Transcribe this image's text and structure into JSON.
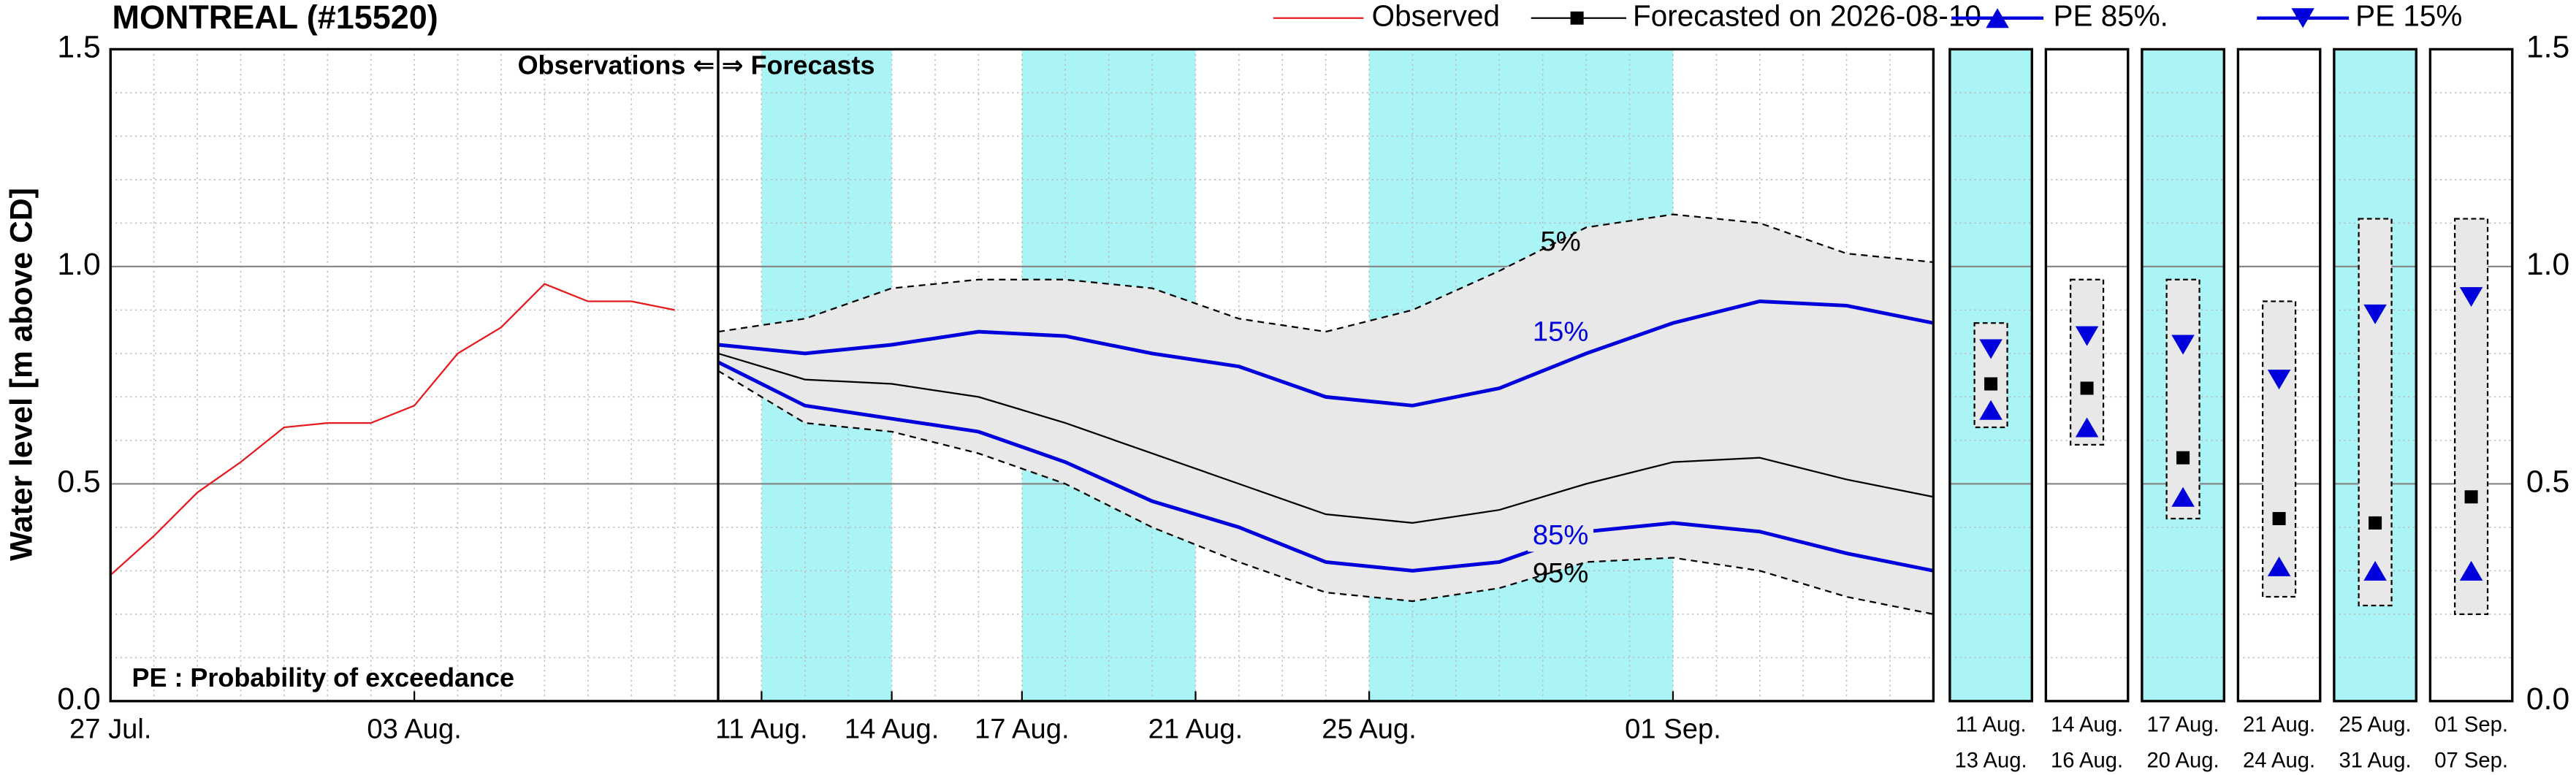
{
  "chart_data": {
    "type": "line",
    "title": "MONTREAL (#15520)",
    "y_label": "Water level [m above CD]",
    "annotations": {
      "observations": "Observations ⇐",
      "forecasts": "⇒ Forecasts",
      "pe_note": "PE : Probability of exceedance"
    },
    "xlim": [
      "2026-07-27",
      "2026-09-07"
    ],
    "ylim": [
      0,
      1.5
    ],
    "yticks": [
      {
        "value": 0,
        "label": "0.0"
      },
      {
        "value": 0.5,
        "label": "0.5"
      },
      {
        "value": 1.0,
        "label": "1.0"
      },
      {
        "value": 1.5,
        "label": "1.5"
      }
    ],
    "xticks": [
      {
        "value": "2026-07-27",
        "label": "27 Jul."
      },
      {
        "value": "2026-08-03",
        "label": "03 Aug."
      },
      {
        "value": "2026-08-11",
        "label": "11 Aug."
      },
      {
        "value": "2026-08-14",
        "label": "14 Aug."
      },
      {
        "value": "2026-08-17",
        "label": "17 Aug."
      },
      {
        "value": "2026-08-21",
        "label": "21 Aug."
      },
      {
        "value": "2026-08-25",
        "label": "25 Aug."
      },
      {
        "value": "2026-09-01",
        "label": "01 Sep."
      }
    ],
    "forecast_start": "2026-08-10",
    "grid": true,
    "observed": {
      "name": "Observed",
      "color": "#e41a1c",
      "x": [
        "2026-07-27",
        "2026-07-28",
        "2026-07-29",
        "2026-07-30",
        "2026-07-31",
        "2026-08-01",
        "2026-08-02",
        "2026-08-03",
        "2026-08-04",
        "2026-08-05",
        "2026-08-06",
        "2026-08-07",
        "2026-08-08",
        "2026-08-09"
      ],
      "values": [
        0.29,
        0.38,
        0.48,
        0.55,
        0.63,
        0.64,
        0.64,
        0.68,
        0.8,
        0.86,
        0.96,
        0.92,
        0.92,
        0.9
      ]
    },
    "forecast_x": [
      "2026-08-10",
      "2026-08-12",
      "2026-08-14",
      "2026-08-16",
      "2026-08-18",
      "2026-08-20",
      "2026-08-22",
      "2026-08-24",
      "2026-08-26",
      "2026-08-28",
      "2026-08-30",
      "2026-09-01",
      "2026-09-03",
      "2026-09-05",
      "2026-09-07"
    ],
    "median": {
      "name": "Forecasted on 2026-08-10",
      "color": "#000000",
      "values": [
        0.8,
        0.74,
        0.73,
        0.7,
        0.64,
        0.57,
        0.5,
        0.43,
        0.41,
        0.44,
        0.5,
        0.55,
        0.56,
        0.51,
        0.47
      ]
    },
    "pe15": {
      "name": "PE 15%",
      "label": "15%",
      "color": "#0000dd",
      "values": [
        0.82,
        0.8,
        0.82,
        0.85,
        0.84,
        0.8,
        0.77,
        0.7,
        0.68,
        0.72,
        0.8,
        0.87,
        0.92,
        0.91,
        0.87
      ]
    },
    "pe85": {
      "name": "PE 85%.",
      "label": "85%",
      "color": "#0000dd",
      "values": [
        0.78,
        0.68,
        0.65,
        0.62,
        0.55,
        0.46,
        0.4,
        0.32,
        0.3,
        0.32,
        0.39,
        0.41,
        0.39,
        0.34,
        0.3
      ]
    },
    "envelope": {
      "upper_label": "5%",
      "lower_label": "95%",
      "fill": "#e8e8e8",
      "band_color": "#aaf4f6",
      "upper": [
        0.85,
        0.88,
        0.95,
        0.97,
        0.97,
        0.95,
        0.88,
        0.85,
        0.9,
        0.99,
        1.09,
        1.12,
        1.1,
        1.03,
        1.01
      ],
      "lower": [
        0.76,
        0.64,
        0.62,
        0.57,
        0.5,
        0.4,
        0.32,
        0.25,
        0.23,
        0.26,
        0.32,
        0.33,
        0.3,
        0.24,
        0.2
      ]
    },
    "periods": [
      {
        "start": "2026-08-11",
        "end": "2026-08-13",
        "label_start": "11 Aug.",
        "label_end": "13 Aug.",
        "shaded": true,
        "high": 0.87,
        "low": 0.63,
        "pe15": 0.81,
        "median": 0.73,
        "pe85": 0.67
      },
      {
        "start": "2026-08-14",
        "end": "2026-08-16",
        "label_start": "14 Aug.",
        "label_end": "16 Aug.",
        "shaded": false,
        "high": 0.97,
        "low": 0.59,
        "pe15": 0.84,
        "median": 0.72,
        "pe85": 0.63
      },
      {
        "start": "2026-08-17",
        "end": "2026-08-20",
        "label_start": "17 Aug.",
        "label_end": "20 Aug.",
        "shaded": true,
        "high": 0.97,
        "low": 0.42,
        "pe15": 0.82,
        "median": 0.56,
        "pe85": 0.47
      },
      {
        "start": "2026-08-21",
        "end": "2026-08-24",
        "label_start": "21 Aug.",
        "label_end": "24 Aug.",
        "shaded": false,
        "high": 0.92,
        "low": 0.24,
        "pe15": 0.74,
        "median": 0.42,
        "pe85": 0.31
      },
      {
        "start": "2026-08-25",
        "end": "2026-08-31",
        "label_start": "25 Aug.",
        "label_end": "31 Aug.",
        "shaded": true,
        "high": 1.11,
        "low": 0.22,
        "pe15": 0.89,
        "median": 0.41,
        "pe85": 0.3
      },
      {
        "start": "2026-09-01",
        "end": "2026-09-07",
        "label_start": "01 Sep.",
        "label_end": "07 Sep.",
        "shaded": false,
        "high": 1.11,
        "low": 0.2,
        "pe15": 0.93,
        "median": 0.47,
        "pe85": 0.3
      }
    ]
  }
}
